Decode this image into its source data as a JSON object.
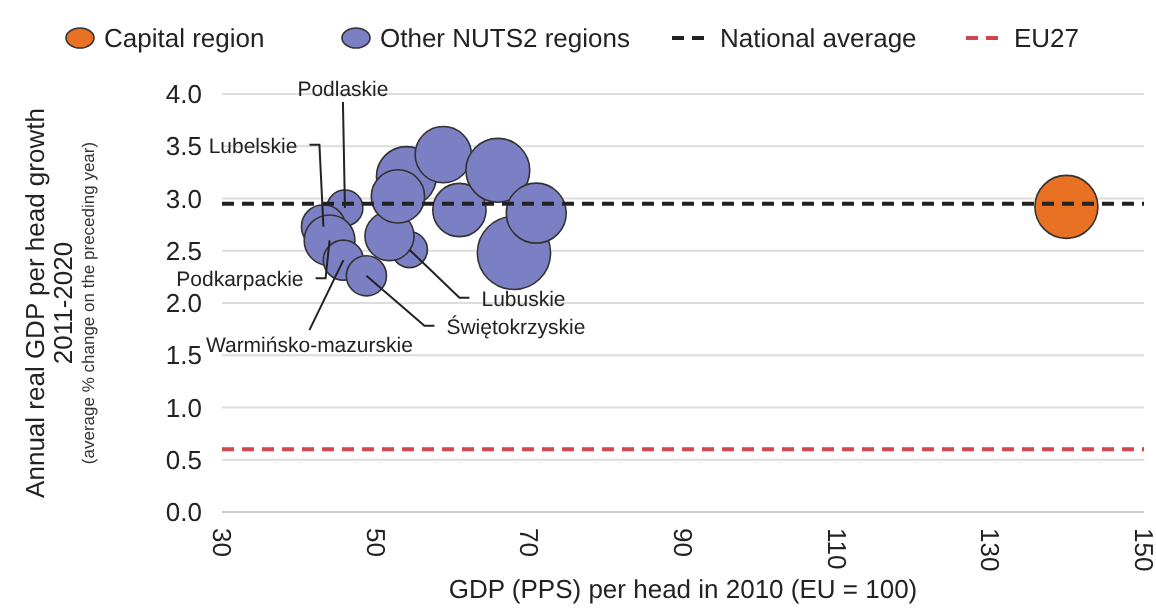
{
  "chart_data": {
    "type": "bubble",
    "xlabel": "GDP (PPS) per head in 2010 (EU = 100)",
    "ylabel": "Annual real GDP per head growth 2011-2020",
    "annotations": [
      "(average % change on the preceding year)",
      {
        "text": "Podlaskie",
        "x": 46.0,
        "y": 2.91
      },
      {
        "text": "Lubelskie",
        "x": 43.2,
        "y": 2.73
      },
      {
        "text": "Podkarpackie",
        "x": 44.0,
        "y": 2.6
      },
      {
        "text": "Warmińsko-mazurskie",
        "x": 45.8,
        "y": 2.41
      },
      {
        "text": "Świętokrzyskie",
        "x": 48.8,
        "y": 2.26
      },
      {
        "text": "Lubuskie",
        "x": 54.4,
        "y": 2.51
      }
    ],
    "series": [
      {
        "name": "Capital region",
        "color": "#e87124",
        "x": [
          139.9
        ],
        "values": [
          2.92
        ],
        "sizes": [
          0.74
        ]
      },
      {
        "name": "Other NUTS2 regions",
        "color": "#7b7fc4",
        "x": [
          46.0,
          43.2,
          44.0,
          45.8,
          48.8,
          54.4,
          51.8,
          54.0,
          52.9,
          58.8,
          60.9,
          65.9,
          68.0,
          70.9
        ],
        "values": [
          2.91,
          2.73,
          2.6,
          2.41,
          2.26,
          2.51,
          2.64,
          3.21,
          3.02,
          3.42,
          2.89,
          3.27,
          2.48,
          2.86
        ],
        "sizes": [
          0.24,
          0.36,
          0.48,
          0.3,
          0.3,
          0.24,
          0.45,
          0.67,
          0.53,
          0.59,
          0.53,
          0.76,
          1,
          0.67
        ]
      }
    ],
    "ref_lines": [
      {
        "axis": "y",
        "value": 2.95,
        "label": "National average",
        "color": "#222222",
        "line_style": "dashed"
      },
      {
        "axis": "y",
        "value": 0.6,
        "label": "EU27",
        "color": "#d0474b",
        "line_style": "dashed"
      }
    ],
    "xlim": [
      30,
      150
    ],
    "xticks": [
      30,
      50,
      70,
      90,
      110,
      130,
      150
    ],
    "ylim": [
      0,
      4
    ],
    "yticks": [
      {
        "value": 0,
        "label": "0.0"
      },
      {
        "value": 0.5,
        "label": "0.5"
      },
      {
        "value": 1,
        "label": "1.0"
      },
      {
        "value": 1.5,
        "label": "1.5"
      },
      {
        "value": 2,
        "label": "2.0"
      },
      {
        "value": 2.5,
        "label": "2.5"
      },
      {
        "value": 3,
        "label": "3.0"
      },
      {
        "value": 3.5,
        "label": "3.5"
      },
      {
        "value": 4,
        "label": "4.0"
      }
    ],
    "grid": "y",
    "legend": "top",
    "marker": "circle"
  }
}
